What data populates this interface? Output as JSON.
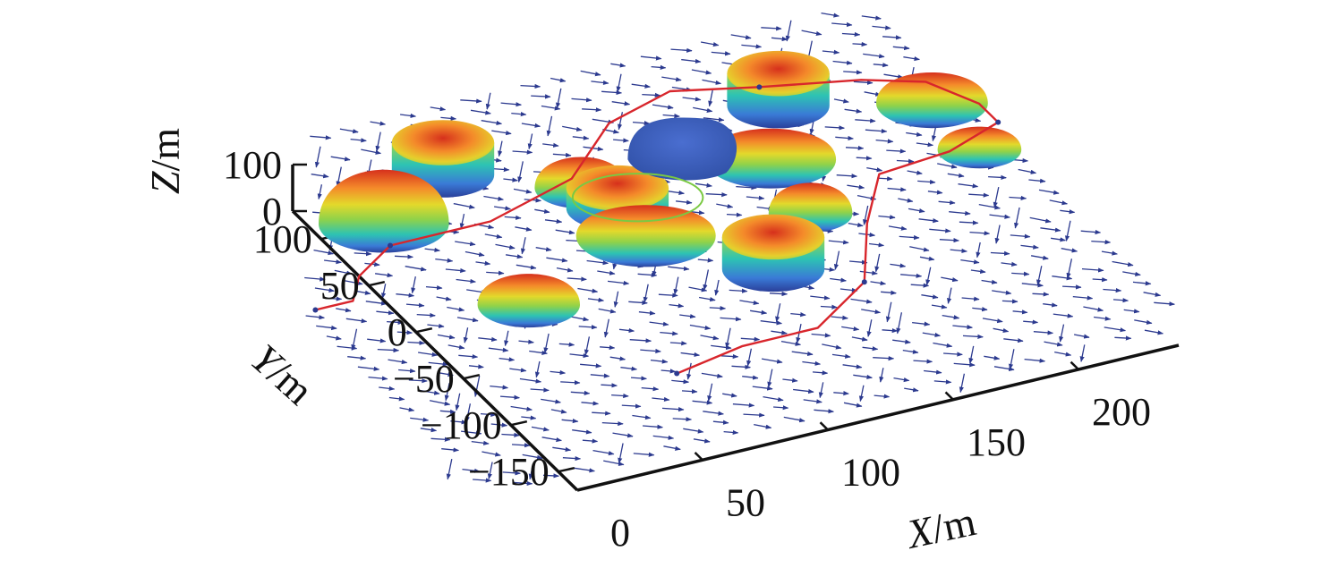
{
  "chart_data": {
    "type": "3d-surface-path",
    "axes": {
      "x": {
        "label_var": "X",
        "label_unit": "/m",
        "ticks": [
          "0",
          "50",
          "100",
          "150",
          "200"
        ],
        "range": [
          0,
          240
        ]
      },
      "y": {
        "label_var": "Y",
        "label_unit": "/m",
        "ticks": [
          "−150",
          "−100",
          "−50",
          "0",
          "50",
          "100"
        ],
        "range": [
          -170,
          130
        ]
      },
      "z": {
        "label_var": "Z",
        "label_unit": "/m",
        "ticks": [
          "0",
          "100"
        ],
        "range": [
          0,
          100
        ]
      }
    },
    "colors": {
      "path": "#d8262c",
      "circle": "#7ac943",
      "blob": "#3a5fb0",
      "arrow": "#2c3a8f"
    },
    "obstacles": [
      {
        "x": 25,
        "y": 100,
        "r": 28,
        "h": 70,
        "shape": "dome"
      },
      {
        "x": 60,
        "y": 130,
        "r": 22,
        "h": 40,
        "shape": "cylinder"
      },
      {
        "x": 45,
        "y": 0,
        "r": 22,
        "h": 40,
        "shape": "dome"
      },
      {
        "x": 100,
        "y": 90,
        "r": 20,
        "h": 40,
        "shape": "dome"
      },
      {
        "x": 105,
        "y": 65,
        "r": 22,
        "h": 25,
        "shape": "cylinder"
      },
      {
        "x": 105,
        "y": 35,
        "r": 30,
        "h": 40,
        "shape": "dome"
      },
      {
        "x": 135,
        "y": -20,
        "r": 22,
        "h": 40,
        "shape": "cylinder"
      },
      {
        "x": 165,
        "y": 20,
        "r": 18,
        "h": 40,
        "shape": "dome"
      },
      {
        "x": 190,
        "y": 120,
        "r": 22,
        "h": 40,
        "shape": "cylinder"
      },
      {
        "x": 170,
        "y": 75,
        "r": 28,
        "h": 40,
        "shape": "dome"
      },
      {
        "x": 240,
        "y": 90,
        "r": 24,
        "h": 40,
        "shape": "dome"
      },
      {
        "x": 240,
        "y": 40,
        "r": 18,
        "h": 30,
        "shape": "dome"
      }
    ],
    "blob": {
      "x": 140,
      "y": 90,
      "r": 28,
      "h": 25
    },
    "circle": {
      "x": 115,
      "y": 70,
      "r": 28
    },
    "path": [
      [
        -25,
        40
      ],
      [
        -20,
        40
      ],
      [
        -10,
        40
      ],
      [
        0,
        60
      ],
      [
        20,
        80
      ],
      [
        60,
        80
      ],
      [
        100,
        100
      ],
      [
        130,
        140
      ],
      [
        160,
        155
      ],
      [
        190,
        140
      ],
      [
        225,
        125
      ],
      [
        245,
        110
      ],
      [
        255,
        80
      ],
      [
        255,
        60
      ],
      [
        230,
        45
      ],
      [
        200,
        40
      ],
      [
        180,
        0
      ],
      [
        160,
        -50
      ],
      [
        130,
        -80
      ],
      [
        100,
        -80
      ],
      [
        70,
        -90
      ]
    ]
  }
}
